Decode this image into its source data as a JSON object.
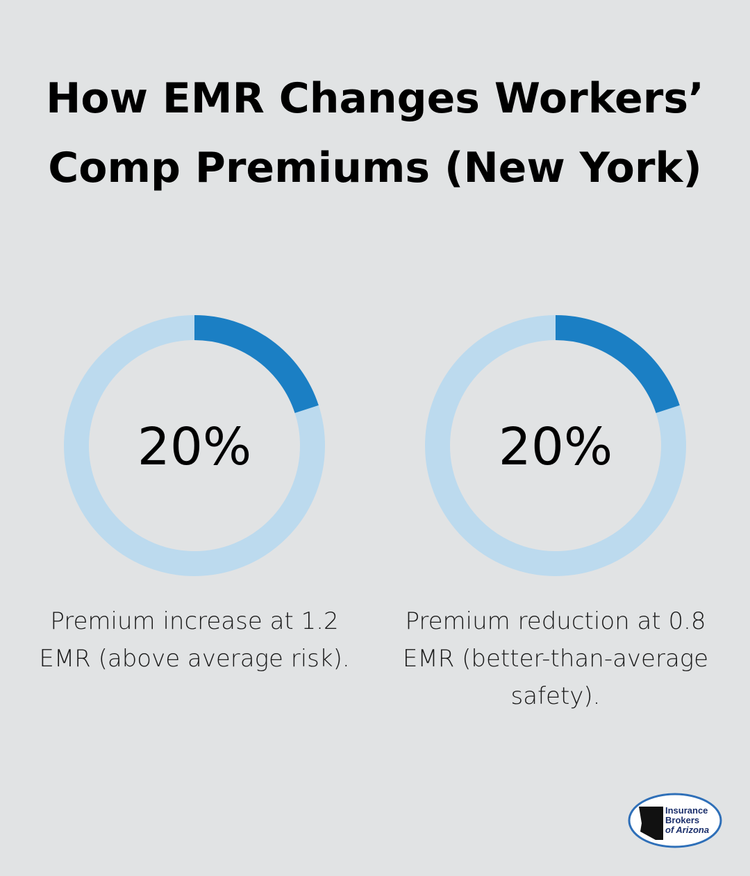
{
  "title": "How EMR Changes Workers’ Comp Premiums (New York)",
  "chart_data": [
    {
      "type": "donut",
      "values": [
        20
      ],
      "value_labels": [
        "20%"
      ],
      "color": "#1b7fc4",
      "track_color": "#bcdaee",
      "caption": "Premium increase at 1.2 EMR (above average risk)."
    },
    {
      "type": "donut",
      "values": [
        20
      ],
      "value_labels": [
        "20%"
      ],
      "color": "#1b7fc4",
      "track_color": "#bcdaee",
      "caption": "Premium reduction at 0.8 EMR (better-than-average safety)."
    }
  ],
  "logo": {
    "lines": [
      "Insurance",
      "Brokers",
      "of Arizona"
    ]
  }
}
